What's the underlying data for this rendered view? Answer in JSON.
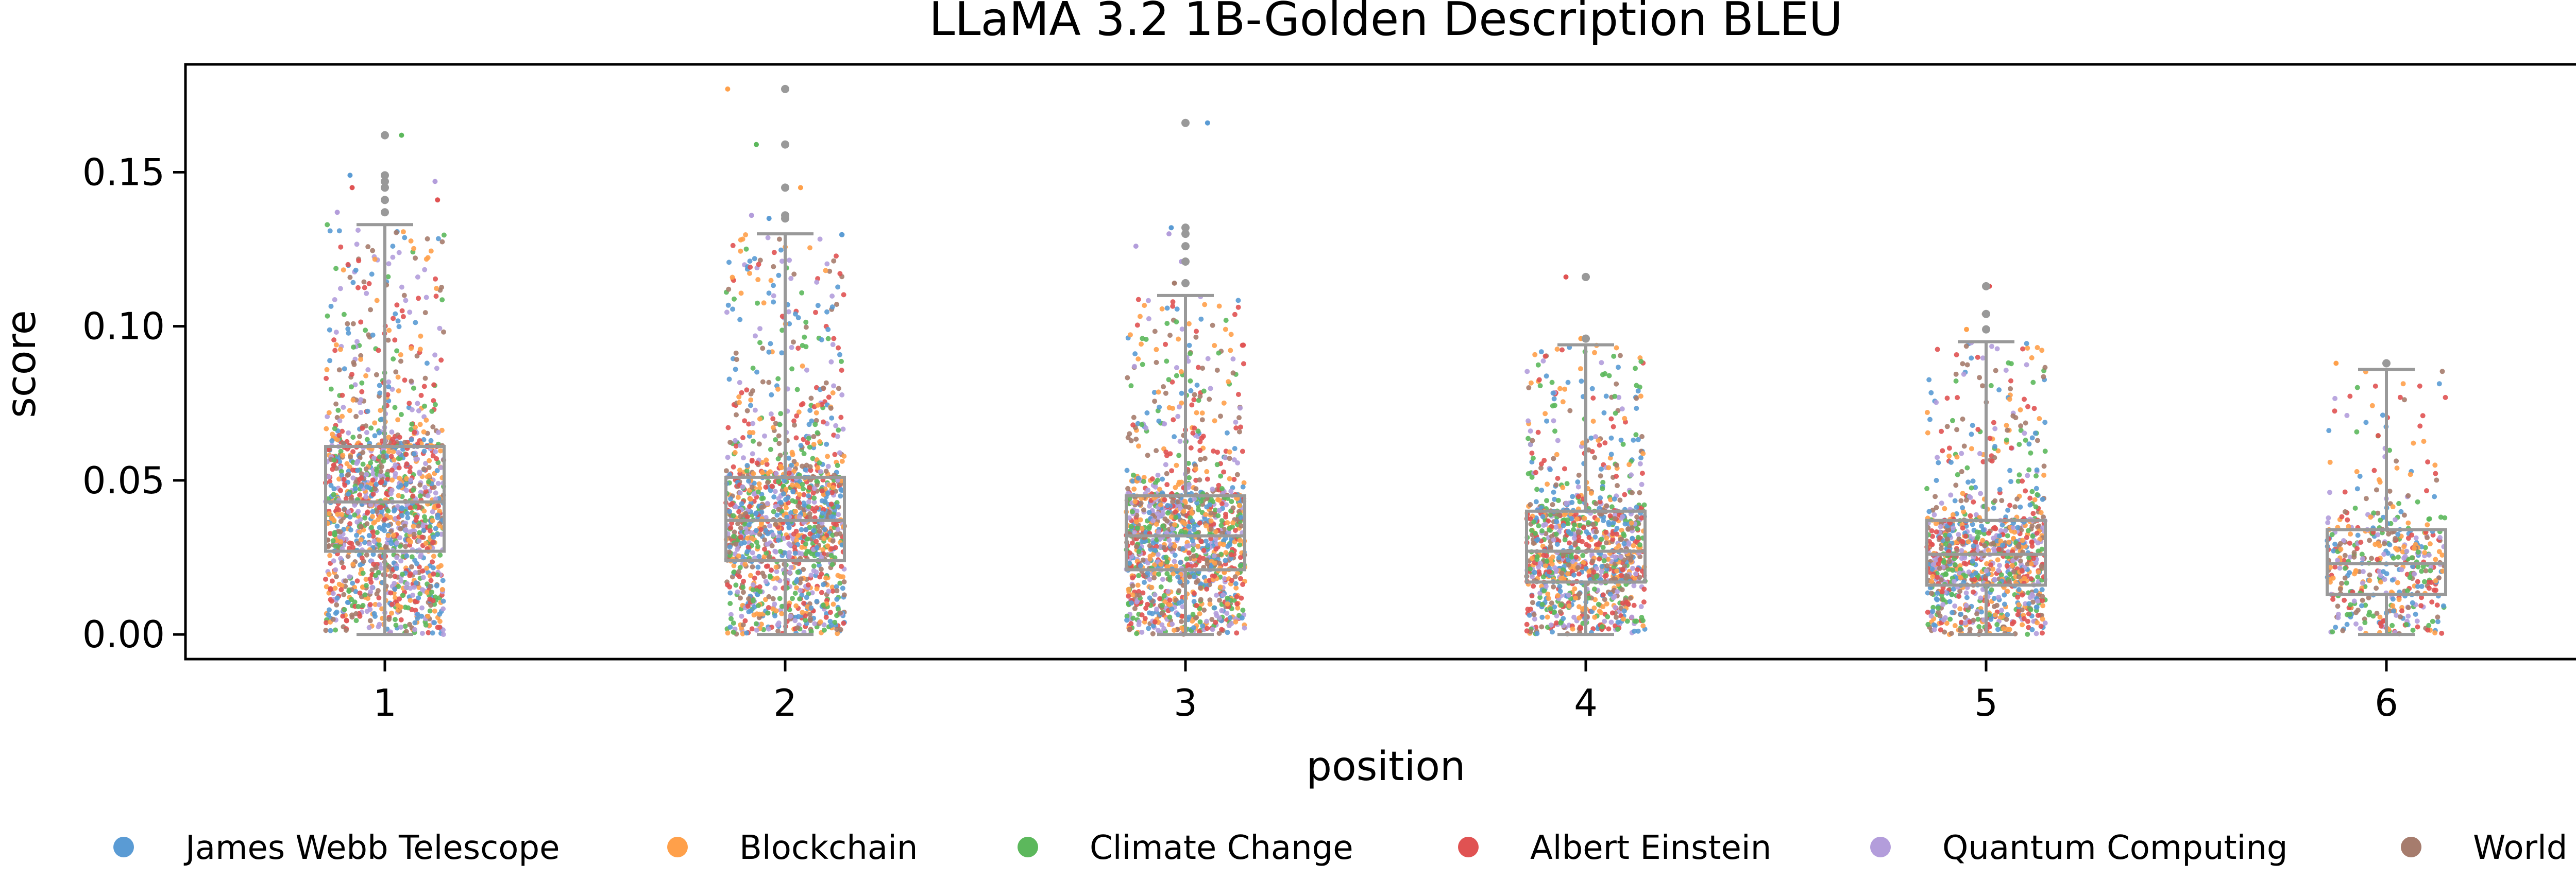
{
  "chart_data": {
    "type": "box-strip",
    "title": "LLaMA 3.2 1B-Golden Description BLEU",
    "xlabel": "position",
    "ylabel": "score",
    "categories": [
      "1",
      "2",
      "3",
      "4",
      "5",
      "6"
    ],
    "ylim": [
      -0.008,
      0.185
    ],
    "yticks": [
      0.0,
      0.05,
      0.1,
      0.15
    ],
    "ytick_labels": [
      "0.00",
      "0.05",
      "0.10",
      "0.15"
    ],
    "grid": false,
    "boxes": [
      {
        "position": "1",
        "whisker_low": 0.0,
        "q1": 0.027,
        "median": 0.043,
        "q3": 0.061,
        "whisker_high": 0.133,
        "outliers": [
          0.137,
          0.141,
          0.145,
          0.147,
          0.149,
          0.162
        ]
      },
      {
        "position": "2",
        "whisker_low": 0.0,
        "q1": 0.024,
        "median": 0.037,
        "q3": 0.051,
        "whisker_high": 0.13,
        "outliers": [
          0.135,
          0.136,
          0.145,
          0.159,
          0.177
        ]
      },
      {
        "position": "3",
        "whisker_low": 0.0,
        "q1": 0.021,
        "median": 0.032,
        "q3": 0.045,
        "whisker_high": 0.11,
        "outliers": [
          0.114,
          0.121,
          0.126,
          0.13,
          0.132,
          0.166
        ]
      },
      {
        "position": "4",
        "whisker_low": 0.0,
        "q1": 0.017,
        "median": 0.027,
        "q3": 0.04,
        "whisker_high": 0.094,
        "outliers": [
          0.096,
          0.116
        ]
      },
      {
        "position": "5",
        "whisker_low": 0.0,
        "q1": 0.016,
        "median": 0.026,
        "q3": 0.037,
        "whisker_high": 0.095,
        "outliers": [
          0.099,
          0.104,
          0.113
        ]
      },
      {
        "position": "6",
        "whisker_low": 0.0,
        "q1": 0.013,
        "median": 0.023,
        "q3": 0.034,
        "whisker_high": 0.086,
        "outliers": [
          0.088
        ]
      }
    ],
    "strip_points_per_position": [
      1400,
      1300,
      1250,
      1050,
      1000,
      450
    ],
    "series": [
      {
        "name": "James Webb Telescope",
        "color": "#5a9bd4"
      },
      {
        "name": "Blockchain",
        "color": "#ffa04a"
      },
      {
        "name": "Climate Change",
        "color": "#5cb85c"
      },
      {
        "name": "Albert Einstein",
        "color": "#e05252"
      },
      {
        "name": "Quantum Computing",
        "color": "#b39ddb"
      },
      {
        "name": "World War II",
        "color": "#a67c6d"
      }
    ],
    "box_color": "#999999",
    "legend_position": "bottom"
  }
}
